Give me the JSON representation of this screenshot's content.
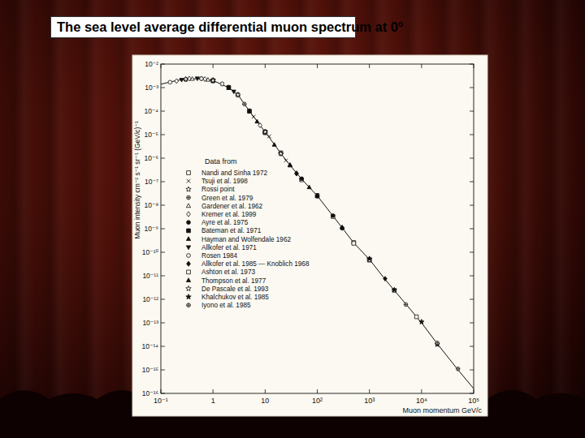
{
  "slide": {
    "title": "The sea level average differential muon spectrum at 0",
    "title_superscript": "o"
  },
  "chart_data": {
    "type": "scatter",
    "x_label": "Muon momentum GeV/c",
    "y_label": "Muon intensity cm⁻² s⁻¹ sr⁻¹ (GeV/c)⁻¹",
    "legend_title": "Data from",
    "legend": "left",
    "log": true,
    "grid": false,
    "color": "#111111",
    "xlim": [
      0.1,
      100000
    ],
    "ylim": [
      1e-16,
      0.01
    ],
    "xticks": [
      {
        "value": 0.1,
        "label": "10⁻¹"
      },
      1,
      10,
      {
        "value": 100,
        "label": "10²"
      },
      {
        "value": 1000,
        "label": "10³"
      },
      {
        "value": 10000,
        "label": "10⁴"
      },
      {
        "value": 100000,
        "label": "10⁵"
      }
    ],
    "yticks": [
      {
        "value": 0.01,
        "label": "10⁻²"
      },
      {
        "value": 0.001,
        "label": "10⁻³"
      },
      {
        "value": 0.0001,
        "label": "10⁻⁴"
      },
      {
        "value": 1e-05,
        "label": "10⁻⁵"
      },
      {
        "value": 1e-06,
        "label": "10⁻⁶"
      },
      {
        "value": 1e-07,
        "label": "10⁻⁷"
      },
      {
        "value": 1e-08,
        "label": "10⁻⁸"
      },
      {
        "value": 1e-09,
        "label": "10⁻⁹"
      },
      {
        "value": 1e-10,
        "label": "10⁻¹⁰"
      },
      {
        "value": 1e-11,
        "label": "10⁻¹¹"
      },
      {
        "value": 1e-12,
        "label": "10⁻¹²"
      },
      {
        "value": 1e-13,
        "label": "10⁻¹³"
      },
      {
        "value": 1e-14,
        "label": "10⁻¹⁴"
      },
      {
        "value": 1e-15,
        "label": "10⁻¹⁵"
      },
      {
        "value": 1e-16,
        "label": "10⁻¹⁶"
      }
    ],
    "fit": {
      "line_style": "solid",
      "x": [
        0.1,
        0.2,
        0.3,
        0.5,
        1,
        2,
        3,
        5,
        10,
        20,
        30,
        50,
        100,
        200,
        300,
        500,
        1000,
        2000,
        5000,
        10000,
        20000,
        50000,
        100000
      ],
      "values": [
        0.0014,
        0.002,
        0.0023,
        0.0024,
        0.002,
        0.001,
        0.0005,
        0.0001,
        1.3e-05,
        1.6e-06,
        5e-07,
        1.3e-07,
        2.5e-08,
        3.5e-09,
        1.1e-09,
        2.5e-10,
        5e-11,
        7e-12,
        6.3e-13,
        1e-13,
        1.3e-14,
        1e-15,
        1.6e-16
      ]
    },
    "series": [
      {
        "name": "Nandi and Sinha 1972",
        "marker": "square",
        "x": [
          10,
          20,
          50,
          100,
          200,
          500,
          1000
        ],
        "values": [
          1.2e-05,
          1.7e-06,
          1.2e-07,
          2.6e-08,
          3.3e-09,
          2.6e-10,
          4.6e-11
        ]
      },
      {
        "name": "Tsuji et al. 1998",
        "marker": "x",
        "x": [
          1.5,
          3,
          6,
          12,
          25,
          50
        ],
        "values": [
          0.0014,
          0.00052,
          5.8e-05,
          8.5e-06,
          8e-07,
          1.25e-07
        ]
      },
      {
        "name": "Rossi point",
        "marker": "star",
        "x": [
          1
        ],
        "values": [
          0.0021
        ]
      },
      {
        "name": "Green et al. 1979",
        "marker": "circle_plus",
        "x": [
          0.3,
          0.6,
          1,
          2,
          4
        ],
        "values": [
          0.0022,
          0.0024,
          0.0019,
          0.00105,
          0.0002
        ]
      },
      {
        "name": "Gardener et al. 1962",
        "marker": "triangle",
        "x": [
          0.4,
          0.8,
          2,
          5,
          10
        ],
        "values": [
          0.00235,
          0.00215,
          0.00095,
          0.000105,
          1.25e-05
        ]
      },
      {
        "name": "Kremer et al. 1999",
        "marker": "diamond",
        "x": [
          0.2,
          0.35,
          0.7,
          1.5,
          3,
          8,
          20,
          40
        ],
        "values": [
          0.0019,
          0.0024,
          0.0023,
          0.00145,
          0.00048,
          2.5e-05,
          1.55e-06,
          2.3e-07
        ]
      },
      {
        "name": "Ayre et al. 1975",
        "marker": "circle_filled",
        "x": [
          20,
          50,
          100,
          200,
          300
        ],
        "values": [
          1.6e-06,
          1.35e-07,
          2.4e-08,
          3.6e-09,
          1.05e-09
        ]
      },
      {
        "name": "Bateman et al. 1971",
        "marker": "square_filled",
        "x": [
          1,
          2,
          5,
          10
        ],
        "values": [
          0.00195,
          0.00102,
          9.8e-05,
          1.3e-05
        ]
      },
      {
        "name": "Hayman and Wolfendale 1962",
        "marker": "triangle_filled",
        "x": [
          3,
          7,
          15,
          30,
          70
        ],
        "values": [
          0.00051,
          3.6e-05,
          3.7e-06,
          4.9e-07,
          5.8e-08
        ]
      },
      {
        "name": "Allkofer et al. 1971",
        "marker": "triangle_down_filled",
        "x": [
          0.25,
          0.5,
          1,
          2.5,
          5,
          10
        ],
        "values": [
          0.00215,
          0.00245,
          0.00205,
          0.00068,
          0.000102,
          1.28e-05
        ]
      },
      {
        "name": "Rosen 1984",
        "marker": "circle",
        "x": [
          0.15,
          0.3,
          0.6
        ],
        "values": [
          0.0017,
          0.00225,
          0.0024
        ]
      },
      {
        "name": "Allkofer et al. 1985 — Knoblich 1968",
        "marker": "diamond_filled",
        "x": [
          40,
          100,
          300,
          1000,
          2000
        ],
        "values": [
          2.2e-07,
          2.6e-08,
          1.1e-09,
          5.2e-11,
          7.5e-12
        ]
      },
      {
        "name": "Ashton et al. 1973",
        "marker": "square",
        "x": [
          500,
          1000,
          3000,
          8000
        ],
        "values": [
          2.4e-10,
          4.8e-11,
          2.4e-12,
          1.8e-13
        ]
      },
      {
        "name": "Thompson et al. 1977",
        "marker": "triangle_filled",
        "x": [
          10,
          30,
          100,
          300
        ],
        "values": [
          1.4e-05,
          5.2e-07,
          2.4e-08,
          1.15e-09
        ]
      },
      {
        "name": "De Pascale et al. 1993",
        "marker": "star",
        "x": [
          0.3,
          1,
          3,
          10,
          20
        ],
        "values": [
          0.0023,
          0.002,
          0.00049,
          1.3e-05,
          1.55e-06
        ]
      },
      {
        "name": "Khalchukov et al. 1985",
        "marker": "star_filled",
        "x": [
          1000,
          3000,
          10000,
          20000
        ],
        "values": [
          5.3e-11,
          2.5e-12,
          1.1e-13,
          1.2e-14
        ]
      },
      {
        "name": "Iyono et al. 1985",
        "marker": "circle_plus",
        "x": [
          5000,
          20000,
          50000
        ],
        "values": [
          6e-13,
          1.4e-14,
          1.1e-15
        ]
      }
    ]
  }
}
